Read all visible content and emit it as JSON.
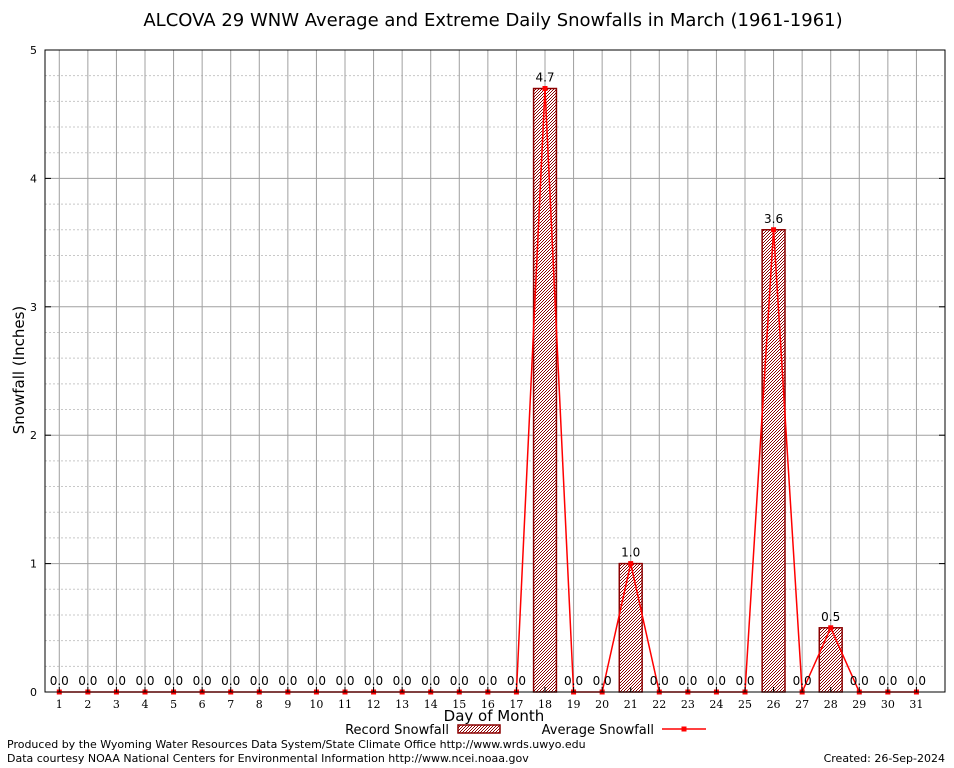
{
  "chart_data": {
    "type": "bar",
    "title": "ALCOVA 29 WNW Average and Extreme Daily Snowfalls in March (1961-1961)",
    "xlabel": "Day of Month",
    "ylabel": "Snowfall (Inches)",
    "ylim": [
      0,
      5
    ],
    "yticks": [
      "0",
      "1",
      "2",
      "3",
      "4",
      "5"
    ],
    "categories": [
      "1",
      "2",
      "3",
      "4",
      "5",
      "6",
      "7",
      "8",
      "9",
      "10",
      "11",
      "12",
      "13",
      "14",
      "15",
      "16",
      "17",
      "18",
      "19",
      "20",
      "21",
      "22",
      "23",
      "24",
      "25",
      "26",
      "27",
      "28",
      "29",
      "30",
      "31"
    ],
    "series": [
      {
        "name": "Record Snowfall",
        "kind": "bar",
        "values": [
          0,
          0,
          0,
          0,
          0,
          0,
          0,
          0,
          0,
          0,
          0,
          0,
          0,
          0,
          0,
          0,
          0,
          4.7,
          0,
          0,
          1.0,
          0,
          0,
          0,
          0,
          3.6,
          0,
          0.5,
          0,
          0,
          0
        ]
      },
      {
        "name": "Average Snowfall",
        "kind": "line",
        "values": [
          0,
          0,
          0,
          0,
          0,
          0,
          0,
          0,
          0,
          0,
          0,
          0,
          0,
          0,
          0,
          0,
          0,
          4.7,
          0,
          0,
          1.0,
          0,
          0,
          0,
          0,
          3.6,
          0,
          0.5,
          0,
          0,
          0
        ]
      }
    ],
    "data_labels": [
      "0.0",
      "0.0",
      "0.0",
      "0.0",
      "0.0",
      "0.0",
      "0.0",
      "0.0",
      "0.0",
      "0.0",
      "0.0",
      "0.0",
      "0.0",
      "0.0",
      "0.0",
      "0.0",
      "0.0",
      "4.7",
      "0.0",
      "0.0",
      "1.0",
      "0.0",
      "0.0",
      "0.0",
      "0.0",
      "3.6",
      "0.0",
      "0.5",
      "0.0",
      "0.0",
      "0.0"
    ],
    "grid": true,
    "legend_position": "bottom"
  },
  "footer": {
    "produced_by": "Produced by the Wyoming Water Resources Data System/State Climate Office http://www.wrds.uwyo.edu",
    "data_courtesy": "Data courtesy NOAA National Centers for Environmental Information http://www.ncei.noaa.gov",
    "created": "Created: 26-Sep-2024"
  },
  "colors": {
    "bar_fill": "#c9a9a9",
    "bar_stroke": "#8b0000",
    "line": "#ff0000",
    "grid_major": "#a0a0a0",
    "grid_minor": "#c8c8c8"
  }
}
